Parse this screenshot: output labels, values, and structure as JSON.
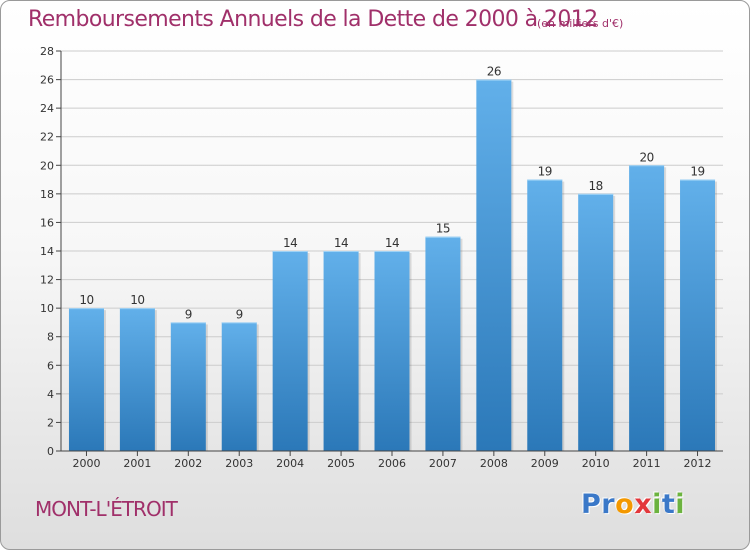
{
  "title": "Remboursements Annuels de la Dette de 2000 à 2012",
  "subtitle": "(en milliers d'€)",
  "location": "MONT-L'ÉTROIT",
  "logo": {
    "letters": [
      "P",
      "r",
      "o",
      "x",
      "i",
      "t",
      "i"
    ],
    "colors": [
      "#3a78c8",
      "#3a78c8",
      "#f39800",
      "#e3373b",
      "#6cb33f",
      "#3a78c8",
      "#6cb33f"
    ]
  },
  "colors": {
    "bar_light": "#62b0ea",
    "bar_dark": "#2b78b8",
    "axis": "#444444",
    "grid": "#cccccc",
    "text": "#333333",
    "title": "#a0306a"
  },
  "chart_data": {
    "type": "bar",
    "title": "Remboursements Annuels de la Dette de 2000 à 2012",
    "subtitle": "(en milliers d'€)",
    "xlabel": "",
    "ylabel": "",
    "categories": [
      "2000",
      "2001",
      "2002",
      "2003",
      "2004",
      "2005",
      "2006",
      "2007",
      "2008",
      "2009",
      "2010",
      "2011",
      "2012"
    ],
    "values": [
      10,
      10,
      9,
      9,
      14,
      14,
      14,
      15,
      26,
      19,
      18,
      20,
      19
    ],
    "data_labels": [
      "10",
      "10",
      "9",
      "9",
      "14",
      "14",
      "14",
      "15",
      "26",
      "19",
      "18",
      "20",
      "19"
    ],
    "ylim": [
      0,
      28
    ],
    "yticks": [
      0,
      2,
      4,
      6,
      8,
      10,
      12,
      14,
      16,
      18,
      20,
      22,
      24,
      26,
      28
    ],
    "grid": true,
    "legend": "none"
  }
}
